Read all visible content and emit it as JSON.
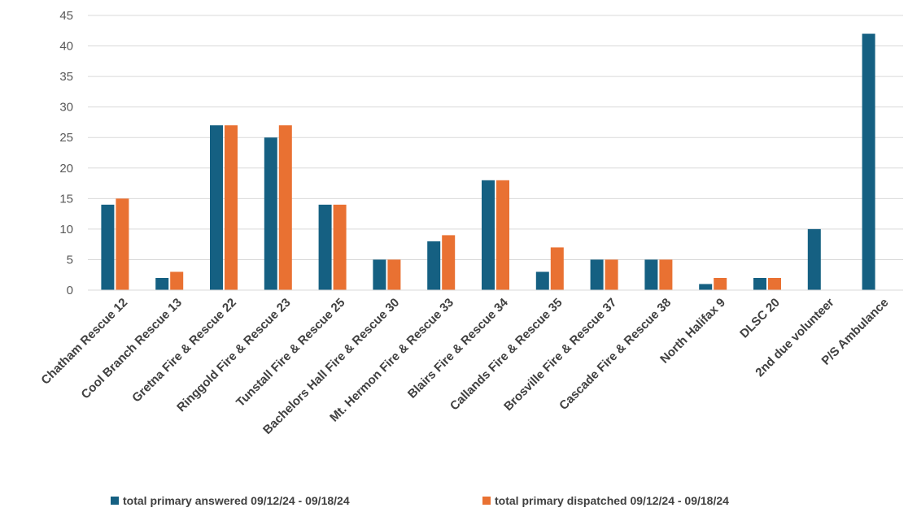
{
  "chart_data": {
    "type": "bar",
    "categories": [
      "Chatham Rescue 12",
      "Cool Branch Rescue 13",
      "Gretna Fire & Rescue 22",
      "Ringgold Fire & Rescue 23",
      "Tunstall Fire & Rescue 25",
      "Bachelors Hall Fire & Rescue 30",
      "Mt. Hermon Fire & Rescue 33",
      "Blairs Fire & Rescue 34",
      "Callands Fire & Rescue 35",
      "Brosville Fire & Rescue 37",
      "Cascade Fire & Rescue 38",
      "North Halifax 9",
      "DLSC 20",
      "2nd due volunteer",
      "P/S Ambulance"
    ],
    "series": [
      {
        "name": "total primary answered 09/12/24 - 09/18/24",
        "color": "#156082",
        "values": [
          14,
          2,
          27,
          25,
          14,
          5,
          8,
          18,
          3,
          5,
          5,
          1,
          2,
          10,
          42
        ]
      },
      {
        "name": "total primary dispatched 09/12/24 - 09/18/24",
        "color": "#E97132",
        "values": [
          15,
          3,
          27,
          27,
          14,
          5,
          9,
          18,
          7,
          5,
          5,
          2,
          2,
          null,
          null
        ]
      }
    ],
    "title": "",
    "xlabel": "",
    "ylabel": "",
    "ylim": [
      0,
      45
    ],
    "yticks": [
      0,
      5,
      10,
      15,
      20,
      25,
      30,
      35,
      40,
      45
    ],
    "grid": true,
    "legend": "bottom"
  }
}
